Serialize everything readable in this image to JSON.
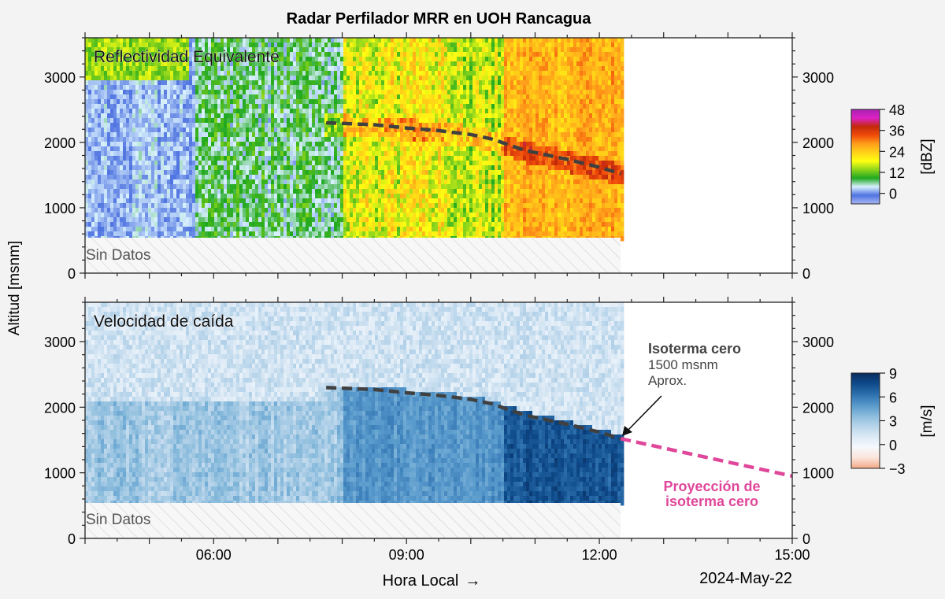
{
  "title": "Radar Perfilador MRR en UOH Rancagua",
  "ylabel": "Altitud [msnm]",
  "xlabel": "Hora Local",
  "date_label": "2024-May-22",
  "no_data_label": "Sin Datos",
  "annotation": {
    "title": "Isoterma cero",
    "line1": "1500 msnm",
    "line2": "Aprox.",
    "projection": "Proyección de",
    "projection2": "isoterma cero"
  },
  "colors": {
    "isotherm": "#404040",
    "projection": "#e0479a",
    "annotation_text": "#444444",
    "background": "#f3f3f3"
  },
  "chart_data": [
    {
      "type": "heatmap",
      "name": "top-panel",
      "panel_label": "Reflectividad Equivalente",
      "colorbar_label": "[dBZ]",
      "colorbar_ticks": [
        0,
        12,
        24,
        36,
        48
      ],
      "colorbar_range": [
        -6,
        48
      ],
      "colorscale": [
        "#a9b8f5",
        "#4f73e0",
        "#d9f1ff",
        "#1fa81f",
        "#8fd61b",
        "#ffff12",
        "#ffd018",
        "#ff9e1a",
        "#f04b0a",
        "#c22a0a",
        "#dc22c5",
        "#a822b0"
      ],
      "x_ticks": [
        "06:00",
        "09:00",
        "12:00",
        "15:00"
      ],
      "x_range_hours": [
        4.0,
        15.0
      ],
      "y_ticks": [
        0,
        1000,
        2000,
        3000
      ],
      "ylim": [
        0,
        3600
      ],
      "data_end_time": "12:20",
      "no_data_below_msnm": 540,
      "zones": [
        {
          "from": "04:00",
          "to": "05:40",
          "dbz_min": -2,
          "dbz_max": 6
        },
        {
          "from": "05:40",
          "to": "08:00",
          "dbz_min": 0,
          "dbz_max": 14
        },
        {
          "from": "08:00",
          "to": "09:40",
          "dbz_min": 10,
          "dbz_max": 28
        },
        {
          "from": "09:40",
          "to": "10:30",
          "dbz_min": 8,
          "dbz_max": 24
        },
        {
          "from": "10:30",
          "to": "12:20",
          "dbz_min": 20,
          "dbz_max": 32
        }
      ],
      "isotherm_line": {
        "x": [
          "07:45",
          "08:30",
          "09:00",
          "09:30",
          "10:00",
          "10:20",
          "10:50",
          "11:30",
          "12:00",
          "12:20"
        ],
        "y": [
          2300,
          2270,
          2220,
          2180,
          2120,
          2050,
          1880,
          1740,
          1620,
          1520
        ]
      }
    },
    {
      "type": "heatmap",
      "name": "bottom-panel",
      "panel_label": "Velocidad de caída",
      "colorbar_label": "[m/s]",
      "colorbar_ticks": [
        -3,
        0,
        3,
        6,
        9
      ],
      "colorbar_range": [
        -3,
        9
      ],
      "colorscale": [
        "#f3a886",
        "#fbe4da",
        "#f5f9fd",
        "#dbe9f5",
        "#b7d4ea",
        "#89bbdc",
        "#5698cb",
        "#2d6fad",
        "#0e4a8a",
        "#0a2d5e"
      ],
      "x_ticks": [
        "06:00",
        "09:00",
        "12:00",
        "15:00"
      ],
      "x_range_hours": [
        4.0,
        15.0
      ],
      "y_ticks": [
        0,
        1000,
        2000,
        3000
      ],
      "ylim": [
        0,
        3600
      ],
      "data_end_time": "12:20",
      "no_data_below_msnm": 540,
      "zones": [
        {
          "from": "04:00",
          "to": "08:00",
          "ms_low": 1.5,
          "ms_high": 4.5
        },
        {
          "from": "08:00",
          "to": "10:30",
          "ms_low": 4.0,
          "ms_high": 6.0
        },
        {
          "from": "10:30",
          "to": "12:20",
          "ms_low": 6.0,
          "ms_high": 8.5
        }
      ],
      "isotherm_line": {
        "x": [
          "07:45",
          "08:30",
          "09:00",
          "09:30",
          "10:00",
          "10:20",
          "10:50",
          "11:30",
          "12:00",
          "12:20"
        ],
        "y": [
          2300,
          2270,
          2220,
          2180,
          2120,
          2050,
          1880,
          1740,
          1620,
          1520
        ]
      },
      "projection_line": {
        "x": [
          "12:20",
          "15:00"
        ],
        "y": [
          1520,
          950
        ]
      }
    }
  ]
}
